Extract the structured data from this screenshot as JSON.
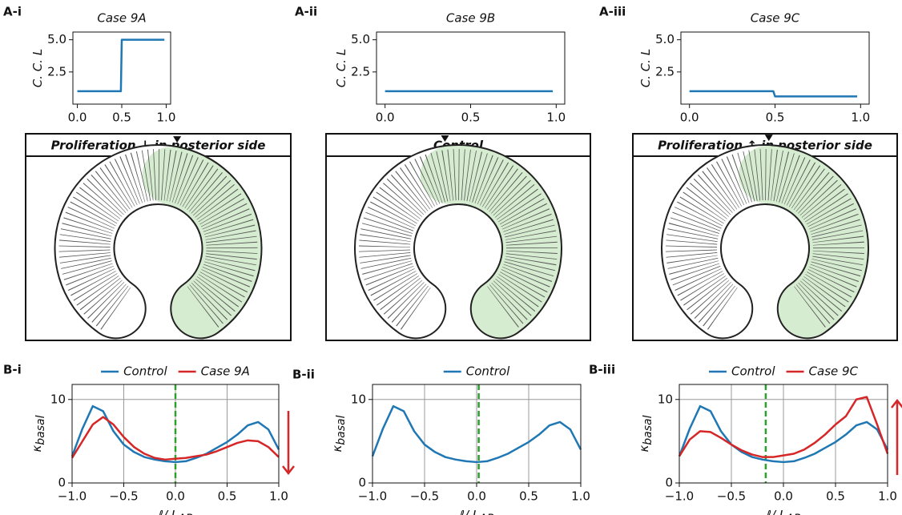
{
  "chart_data": [
    {
      "type": "line",
      "panel_label": "A-i",
      "title": "Case 9A",
      "ylabel": "C. C. L",
      "x": [
        0,
        0.49,
        0.5,
        0.98
      ],
      "values": [
        1,
        1,
        5,
        5
      ],
      "color": "#1f77b4",
      "xlim": [
        -0.05,
        1.05
      ],
      "ylim": [
        0,
        5.6
      ],
      "xticks": [
        {
          "value": 0,
          "label": "0.0"
        },
        0.5,
        {
          "value": 1,
          "label": "1.0"
        }
      ],
      "yticks": [
        2.5,
        {
          "value": 5,
          "label": "5.0"
        }
      ],
      "grid": false
    },
    {
      "type": "line",
      "panel_label": "A-ii",
      "title": "Case 9B",
      "ylabel": "C. C. L",
      "x": [
        0,
        0.98
      ],
      "values": [
        1,
        1
      ],
      "color": "#1f77b4",
      "xlim": [
        -0.05,
        1.05
      ],
      "ylim": [
        0,
        5.6
      ],
      "xticks": [
        {
          "value": 0,
          "label": "0.0"
        },
        0.5,
        {
          "value": 1,
          "label": "1.0"
        }
      ],
      "yticks": [
        2.5,
        {
          "value": 5,
          "label": "5.0"
        }
      ],
      "grid": false
    },
    {
      "type": "line",
      "panel_label": "A-iii",
      "title": "Case 9C",
      "ylabel": "C. C. L",
      "x": [
        0,
        0.49,
        0.5,
        0.98
      ],
      "values": [
        1,
        1,
        0.6,
        0.6
      ],
      "color": "#1f77b4",
      "xlim": [
        -0.05,
        1.05
      ],
      "ylim": [
        0,
        5.6
      ],
      "xticks": [
        {
          "value": 0,
          "label": "0.0"
        },
        0.5,
        {
          "value": 1,
          "label": "1.0"
        }
      ],
      "yticks": [
        2.5,
        {
          "value": 5,
          "label": "5.0"
        }
      ],
      "grid": false
    },
    {
      "type": "line",
      "panel_label": "B-i",
      "ylabel": "κ",
      "ylabel_sub": "basal",
      "xlabel": "ℓ/ L",
      "xlabel_sub": "AP",
      "x": [
        -1,
        -0.9,
        -0.8,
        -0.7,
        -0.6,
        -0.5,
        -0.4,
        -0.3,
        -0.2,
        -0.1,
        0,
        0.1,
        0.2,
        0.3,
        0.4,
        0.5,
        0.6,
        0.7,
        0.8,
        0.9,
        1
      ],
      "series": [
        {
          "name": "Control",
          "color": "#1f77b4",
          "values": [
            3.2,
            6.5,
            9.2,
            8.6,
            6.2,
            4.6,
            3.7,
            3.1,
            2.8,
            2.6,
            2.5,
            2.6,
            3.0,
            3.5,
            4.2,
            4.9,
            5.8,
            6.9,
            7.3,
            6.4,
            4.0
          ]
        },
        {
          "name": "Case 9A",
          "color": "#d62728",
          "values": [
            3.0,
            5.0,
            7.0,
            7.9,
            7.0,
            5.5,
            4.3,
            3.5,
            3.0,
            2.8,
            2.9,
            3.0,
            3.2,
            3.4,
            3.8,
            4.3,
            4.8,
            5.1,
            5.0,
            4.3,
            3.1
          ]
        }
      ],
      "vline": 0,
      "vline_color": "#2ca02c",
      "arrow": "down",
      "arrow_color": "#d62728",
      "xlim": [
        -1,
        1
      ],
      "ylim": [
        0,
        11.8
      ],
      "xticks": [
        {
          "value": -1,
          "label": "−1.0"
        },
        {
          "value": -0.5,
          "label": "−0.5"
        },
        {
          "value": 0,
          "label": "0.0"
        },
        0.5,
        {
          "value": 1,
          "label": "1.0"
        }
      ],
      "yticks": [
        0,
        10
      ],
      "grid": true
    },
    {
      "type": "line",
      "panel_label": "B-ii",
      "ylabel": "κ",
      "ylabel_sub": "basal",
      "xlabel": "ℓ/ L",
      "xlabel_sub": "AP",
      "x": [
        -1,
        -0.9,
        -0.8,
        -0.7,
        -0.6,
        -0.5,
        -0.4,
        -0.3,
        -0.2,
        -0.1,
        0,
        0.1,
        0.2,
        0.3,
        0.4,
        0.5,
        0.6,
        0.7,
        0.8,
        0.9,
        1
      ],
      "series": [
        {
          "name": "Control",
          "color": "#1f77b4",
          "values": [
            3.2,
            6.5,
            9.2,
            8.6,
            6.2,
            4.6,
            3.7,
            3.1,
            2.8,
            2.6,
            2.5,
            2.6,
            3.0,
            3.5,
            4.2,
            4.9,
            5.8,
            6.9,
            7.3,
            6.4,
            4.0
          ]
        }
      ],
      "vline": 0.02,
      "vline_color": "#2ca02c",
      "xlim": [
        -1,
        1
      ],
      "ylim": [
        0,
        11.8
      ],
      "xticks": [
        {
          "value": -1,
          "label": "−1.0"
        },
        {
          "value": -0.5,
          "label": "−0.5"
        },
        {
          "value": 0,
          "label": "0.0"
        },
        0.5,
        {
          "value": 1,
          "label": "1.0"
        }
      ],
      "yticks": [
        0,
        10
      ],
      "grid": true
    },
    {
      "type": "line",
      "panel_label": "B-iii",
      "ylabel": "κ",
      "ylabel_sub": "basal",
      "xlabel": "ℓ/ L",
      "xlabel_sub": "AP",
      "x": [
        -1,
        -0.9,
        -0.8,
        -0.7,
        -0.6,
        -0.5,
        -0.4,
        -0.3,
        -0.2,
        -0.1,
        0,
        0.1,
        0.2,
        0.3,
        0.4,
        0.5,
        0.6,
        0.7,
        0.8,
        0.9,
        1
      ],
      "series": [
        {
          "name": "Control",
          "color": "#1f77b4",
          "values": [
            3.2,
            6.5,
            9.2,
            8.6,
            6.2,
            4.6,
            3.7,
            3.1,
            2.8,
            2.6,
            2.5,
            2.6,
            3.0,
            3.5,
            4.2,
            4.9,
            5.8,
            6.9,
            7.3,
            6.4,
            4.0
          ]
        },
        {
          "name": "Case 9C",
          "color": "#d62728",
          "values": [
            3.2,
            5.2,
            6.2,
            6.1,
            5.4,
            4.6,
            3.9,
            3.4,
            3.1,
            3.1,
            3.3,
            3.5,
            4.0,
            4.8,
            5.8,
            7.0,
            8.0,
            10.0,
            10.3,
            7.0,
            3.5
          ]
        }
      ],
      "vline": -0.17,
      "vline_color": "#2ca02c",
      "arrow": "up",
      "arrow_color": "#d62728",
      "xlim": [
        -1,
        1
      ],
      "ylim": [
        0,
        11.8
      ],
      "xticks": [
        {
          "value": -1,
          "label": "−1.0"
        },
        {
          "value": -0.5,
          "label": "−0.5"
        },
        {
          "value": 0,
          "label": "0.0"
        },
        0.5,
        {
          "value": 1,
          "label": "1.0"
        }
      ],
      "yticks": [
        0,
        10
      ],
      "grid": true
    }
  ],
  "panels": [
    {
      "banner": "Proliferation ↓ in posterior side"
    },
    {
      "banner": "Control"
    },
    {
      "banner": "Proliferation ↑ in posterior side"
    }
  ]
}
